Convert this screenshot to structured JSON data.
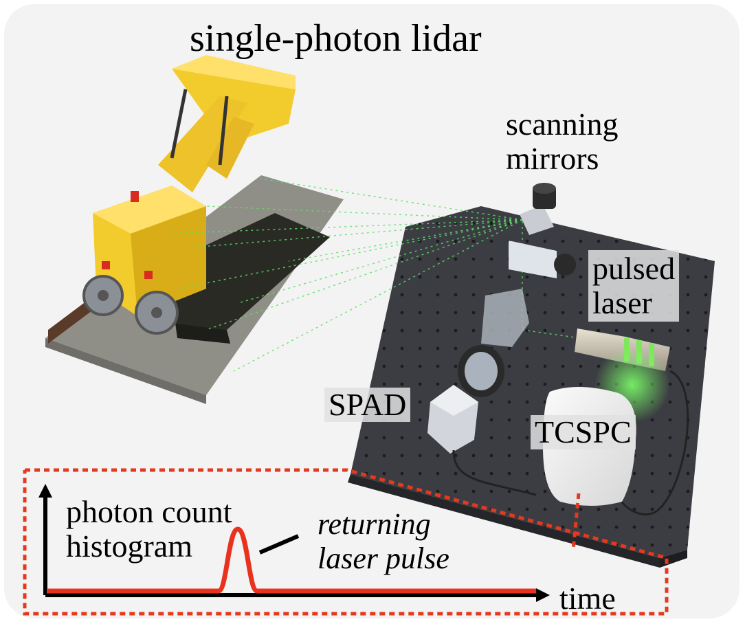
{
  "title": "single-photon lidar",
  "labels": {
    "mirrors_line1": "scanning",
    "mirrors_line2": "mirrors",
    "laser_line1": "pulsed",
    "laser_line2": "laser",
    "spad": "SPAD",
    "tcspc": "TCSPC"
  },
  "histogram": {
    "ylabel_line1": "photon count",
    "ylabel_line2": "histogram",
    "xlabel": "time",
    "annotation_line1": "returning",
    "annotation_line2": "laser pulse"
  },
  "colors": {
    "background": "#f3f3f3",
    "pulse": "#e8321e",
    "dotted_border": "#e5391f",
    "laser_beam": "#5ee06a",
    "table": "#3b3d42",
    "toy": "#f2cc2c"
  }
}
